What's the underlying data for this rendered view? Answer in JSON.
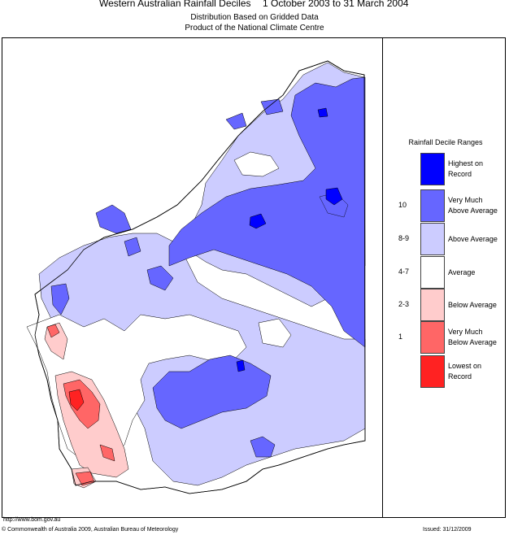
{
  "header": {
    "title_left": "Western Australian Rainfall Deciles",
    "title_right": "1 October 2003 to 31 March 2004",
    "subtitle1": "Distribution Based on Gridded Data",
    "subtitle2": "Product of the National Climate Centre"
  },
  "legend": {
    "title": "Rainfall Decile Ranges",
    "items": [
      {
        "decile": "",
        "label1": "Highest on",
        "label2": "Record",
        "color": "#0000ff"
      },
      {
        "decile": "10",
        "label1": "Very Much",
        "label2": "Above Average",
        "color": "#6666ff"
      },
      {
        "decile": "8-9",
        "label1": "Above Average",
        "label2": "",
        "color": "#ccccff"
      },
      {
        "decile": "4-7",
        "label1": "Average",
        "label2": "",
        "color": "#ffffff"
      },
      {
        "decile": "2-3",
        "label1": "Below Average",
        "label2": "",
        "color": "#ffcccc"
      },
      {
        "decile": "1",
        "label1": "Very Much",
        "label2": "Below Average",
        "color": "#ff6666"
      },
      {
        "decile": "",
        "label1": "Lowest on",
        "label2": "Record",
        "color": "#ff2222"
      }
    ]
  },
  "footer": {
    "url": "http://www.bom.gov.au",
    "copyright": "© Commonwealth of Australia 2009, Australian Bureau of Meteorology",
    "issued": "Issued: 31/12/2009"
  },
  "colors": {
    "highest": "#0000ff",
    "very_much_above": "#6666ff",
    "above": "#ccccff",
    "average": "#ffffff",
    "below": "#ffcccc",
    "very_much_below": "#ff6666",
    "lowest": "#ff2222"
  }
}
